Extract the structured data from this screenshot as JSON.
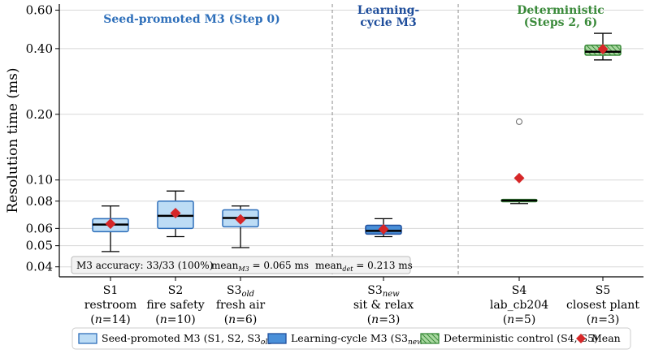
{
  "chart_data": {
    "type": "box",
    "ylabel": "Resolution time (ms)",
    "yscale": "log",
    "ylim": [
      0.036,
      0.64
    ],
    "yticks": [
      "0.04",
      "0.05",
      "0.06",
      "0.08",
      "0.10",
      "0.20",
      "0.40",
      "0.60"
    ],
    "grid": true,
    "groups": [
      {
        "line1": "Seed-promoted M3 (Step 0)",
        "line2": "",
        "color": "#2e6fba"
      },
      {
        "line1": "Learning-",
        "line2": "cycle M3",
        "color": "#1f4e9c"
      },
      {
        "line1": "Deterministic",
        "line2": "(Steps 2, 6)",
        "color": "#3a8a3a"
      }
    ],
    "boxes": [
      {
        "id": "S1",
        "sub": "",
        "label": "restroom",
        "n": "14",
        "series": 0,
        "whislo": 0.047,
        "q1": 0.058,
        "med": 0.0625,
        "q3": 0.0665,
        "whishi": 0.076,
        "mean": 0.063,
        "fliers": []
      },
      {
        "id": "S2",
        "sub": "",
        "label": "fire safety",
        "n": "10",
        "series": 0,
        "whislo": 0.055,
        "q1": 0.06,
        "med": 0.0685,
        "q3": 0.08,
        "whishi": 0.089,
        "mean": 0.0705,
        "fliers": []
      },
      {
        "id": "S3",
        "sub": "old",
        "label": "fresh air",
        "n": "6",
        "series": 0,
        "whislo": 0.049,
        "q1": 0.061,
        "med": 0.067,
        "q3": 0.073,
        "whishi": 0.076,
        "mean": 0.066,
        "fliers": []
      },
      {
        "id": "S3",
        "sub": "new",
        "label": "sit & relax",
        "n": "3",
        "series": 1,
        "whislo": 0.055,
        "q1": 0.0565,
        "med": 0.0585,
        "q3": 0.062,
        "whishi": 0.0665,
        "mean": 0.0595,
        "fliers": []
      },
      {
        "id": "S4",
        "sub": "",
        "label": "lab_cb204",
        "n": "5",
        "series": 2,
        "whislo": 0.078,
        "q1": 0.0795,
        "med": 0.0805,
        "q3": 0.0815,
        "whishi": 0.0815,
        "mean": 0.102,
        "fliers": [
          0.185
        ]
      },
      {
        "id": "S5",
        "sub": "",
        "label": "closest plant",
        "n": "3",
        "series": 2,
        "whislo": 0.355,
        "q1": 0.373,
        "med": 0.387,
        "q3": 0.415,
        "whishi": 0.47,
        "mean": 0.398,
        "fliers": []
      }
    ],
    "annotation": {
      "accuracy": "M3 accuracy: 33/33 (100%)",
      "mean_m3_prefix": "mean",
      "mean_m3_sub": "M3",
      "mean_m3_value": " = 0.065 ms",
      "mean_det_prefix": "mean",
      "mean_det_sub": "det",
      "mean_det_value": " = 0.213 ms"
    },
    "legend": {
      "placement": "bottom",
      "items": [
        {
          "text": "Seed-promoted M3 (S1, S2, S3",
          "sub": "old",
          "tail": ")",
          "series": 0
        },
        {
          "text": "Learning-cycle M3 (S3",
          "sub": "new",
          "tail": ")",
          "series": 1
        },
        {
          "text": "Deterministic control (S4, S5)",
          "sub": "",
          "tail": "",
          "series": 2
        },
        {
          "text": "Mean",
          "sub": "",
          "tail": "",
          "series": "mean"
        }
      ]
    },
    "colors": {
      "seed_fill": "#bcdcf5",
      "seed_edge": "#2e6fba",
      "learn_fill": "#4a90d9",
      "learn_edge": "#1f4e9c",
      "det_fill": "#a9d8a0",
      "det_edge": "#3a8a3a",
      "mean": "#d62728",
      "grid": "#d8d8d8"
    }
  }
}
